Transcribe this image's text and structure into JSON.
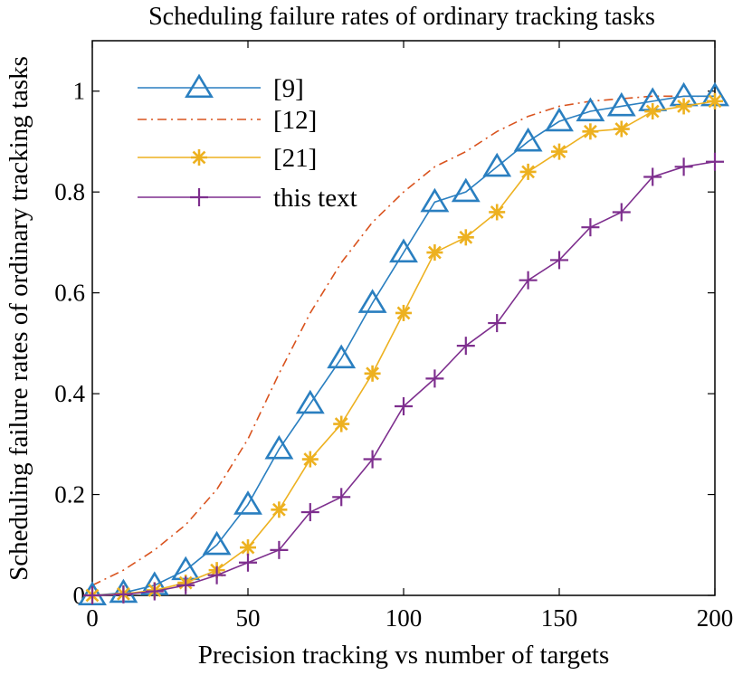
{
  "chart_data": {
    "type": "line",
    "title": "Scheduling failure rates of ordinary tracking tasks",
    "xlabel": "Precision tracking vs number of targets",
    "ylabel": "Scheduling failure rates of ordinary tracking tasks",
    "xlim": [
      0,
      200
    ],
    "ylim": [
      0,
      1.1
    ],
    "xticks": [
      0,
      50,
      100,
      150,
      200
    ],
    "xtick_labels": [
      "0",
      "50",
      "100",
      "150",
      "200"
    ],
    "yticks": [
      0,
      0.2,
      0.4,
      0.6,
      0.8,
      1
    ],
    "ytick_labels": [
      "0",
      "0.2",
      "0.4",
      "0.6",
      "0.8",
      "1"
    ],
    "grid": false,
    "legend_position": "top-left",
    "series": [
      {
        "name": "[9]",
        "color": "#2a7fc0",
        "marker": "triangle",
        "dash": "solid",
        "x": [
          0,
          10,
          20,
          30,
          40,
          50,
          60,
          70,
          80,
          90,
          100,
          110,
          120,
          130,
          140,
          150,
          160,
          170,
          180,
          190,
          200
        ],
        "y": [
          0.0,
          0.005,
          0.02,
          0.05,
          0.1,
          0.18,
          0.29,
          0.38,
          0.47,
          0.58,
          0.68,
          0.78,
          0.8,
          0.85,
          0.9,
          0.94,
          0.96,
          0.97,
          0.98,
          0.99,
          0.99
        ]
      },
      {
        "name": "[12]",
        "color": "#d9531e",
        "marker": "none",
        "dash": "dashdot",
        "x": [
          0,
          10,
          20,
          30,
          40,
          50,
          60,
          70,
          80,
          90,
          100,
          110,
          120,
          130,
          140,
          150,
          160,
          170,
          180,
          190,
          200
        ],
        "y": [
          0.02,
          0.05,
          0.09,
          0.14,
          0.21,
          0.31,
          0.44,
          0.56,
          0.66,
          0.74,
          0.8,
          0.85,
          0.88,
          0.92,
          0.95,
          0.97,
          0.98,
          0.985,
          0.99,
          0.99,
          0.99
        ]
      },
      {
        "name": "[21]",
        "color": "#edb120",
        "marker": "star",
        "dash": "solid",
        "x": [
          0,
          10,
          20,
          30,
          40,
          50,
          60,
          70,
          80,
          90,
          100,
          110,
          120,
          130,
          140,
          150,
          160,
          170,
          180,
          190,
          200
        ],
        "y": [
          0.0,
          0.003,
          0.01,
          0.025,
          0.05,
          0.095,
          0.17,
          0.27,
          0.34,
          0.44,
          0.56,
          0.68,
          0.71,
          0.76,
          0.84,
          0.88,
          0.92,
          0.925,
          0.96,
          0.97,
          0.98
        ]
      },
      {
        "name": "this text",
        "color": "#7e2f8e",
        "marker": "plus",
        "dash": "solid",
        "x": [
          0,
          10,
          20,
          30,
          40,
          50,
          60,
          70,
          80,
          90,
          100,
          110,
          120,
          130,
          140,
          150,
          160,
          170,
          180,
          190,
          200
        ],
        "y": [
          0.0,
          0.002,
          0.008,
          0.02,
          0.04,
          0.065,
          0.09,
          0.165,
          0.195,
          0.27,
          0.375,
          0.43,
          0.495,
          0.54,
          0.625,
          0.665,
          0.73,
          0.76,
          0.83,
          0.85,
          0.86
        ]
      }
    ]
  }
}
